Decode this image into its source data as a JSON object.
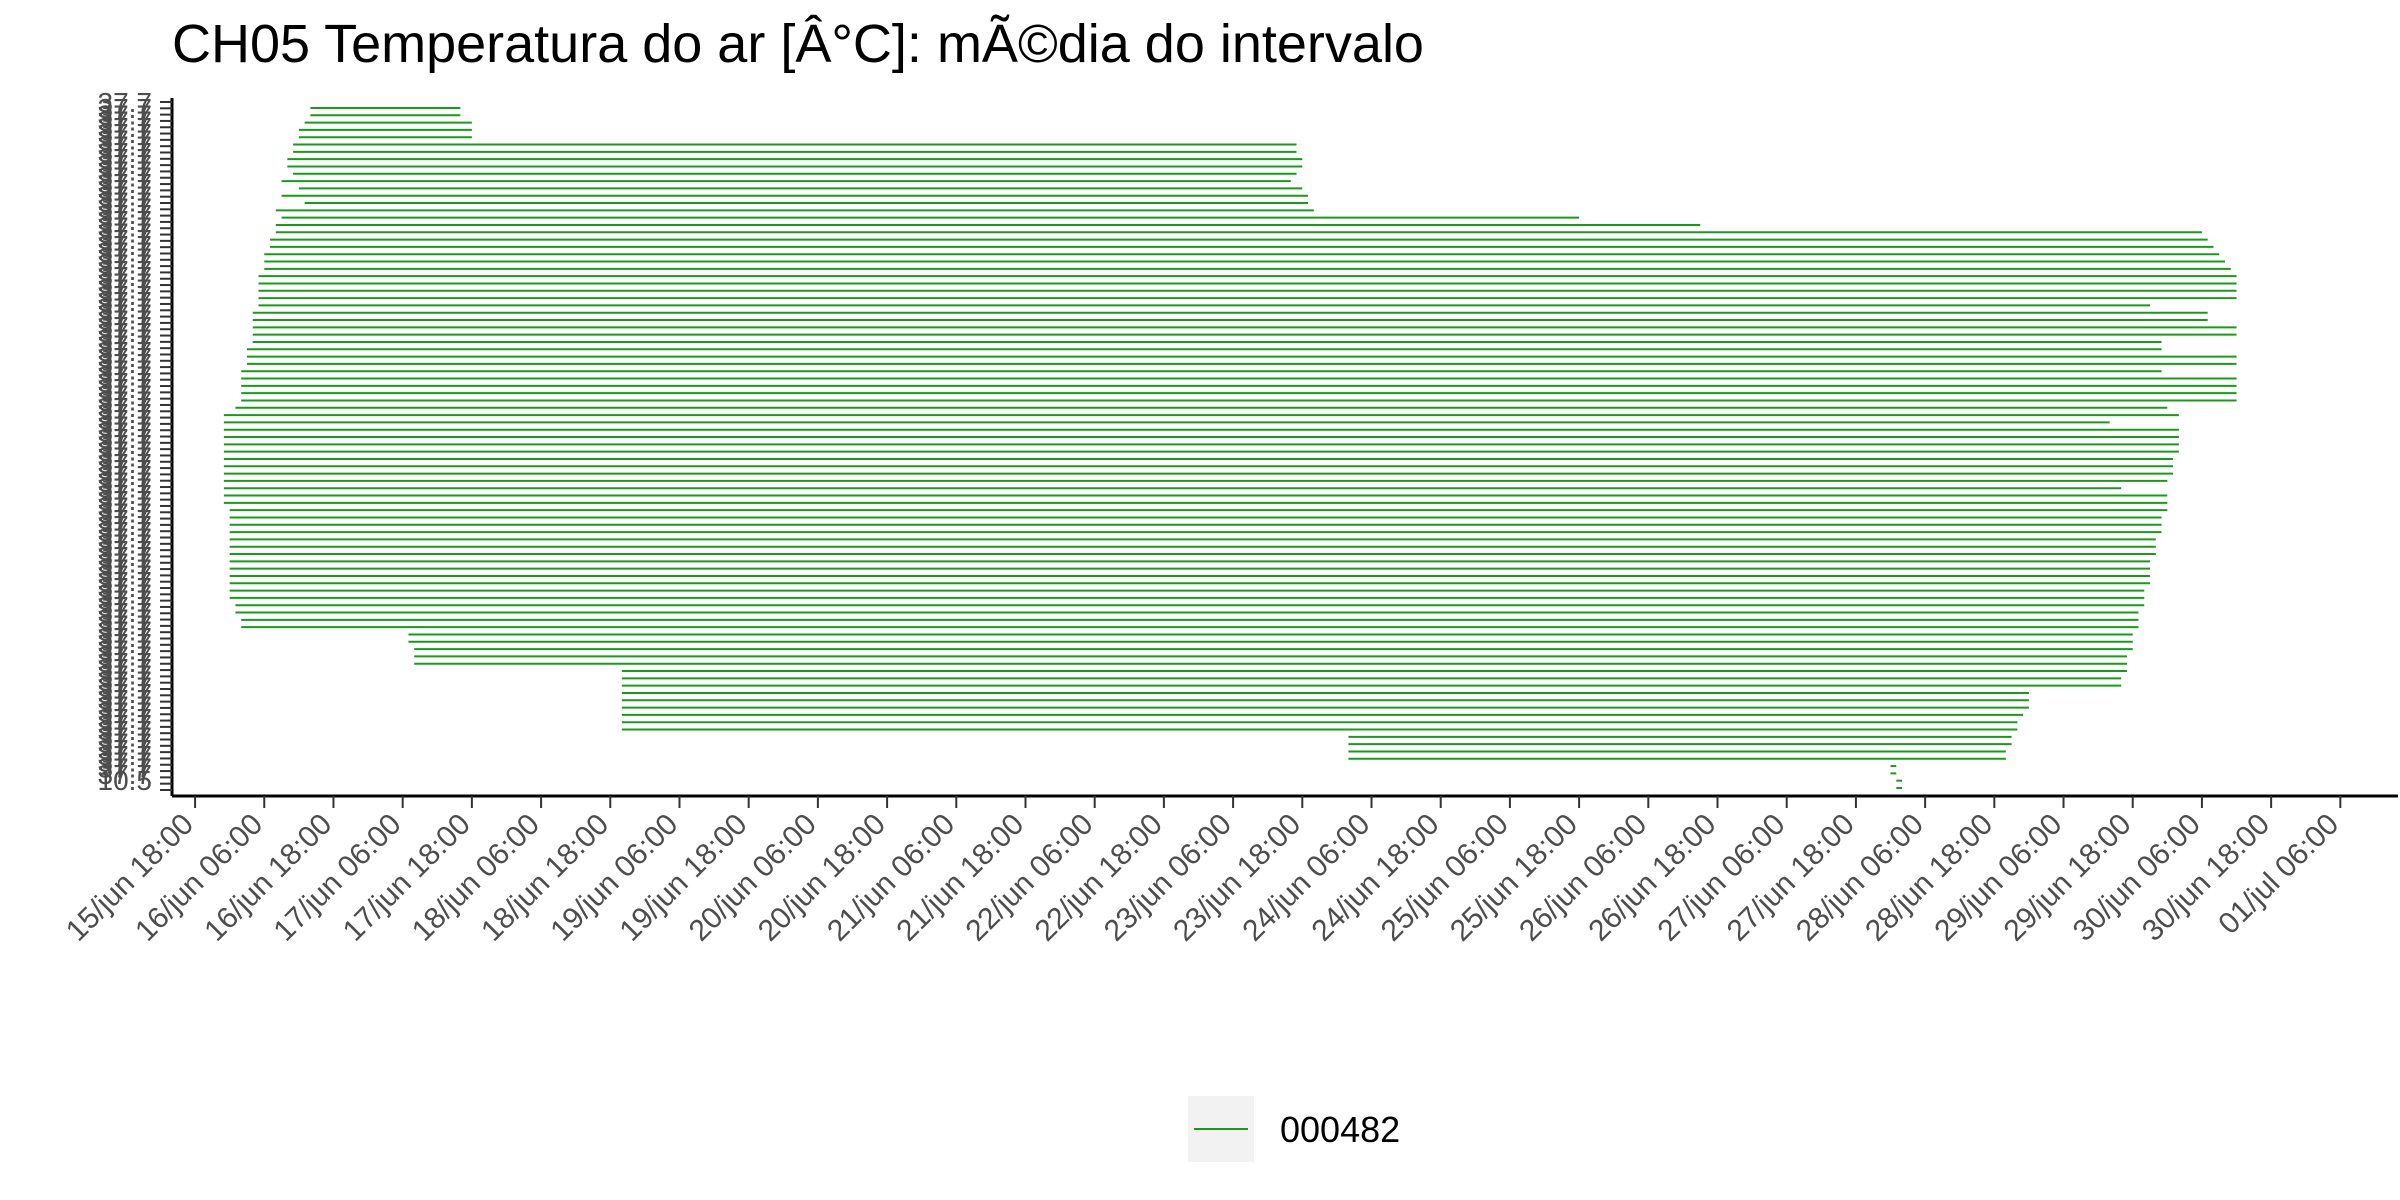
{
  "chart_data": {
    "type": "line",
    "title": "CH05 Temperatura do ar [Â°C]: mÃ©dia do intervalo",
    "xlabel": "",
    "ylabel": "",
    "x_ticks": [
      "15/jun 18:00",
      "16/jun 06:00",
      "16/jun 18:00",
      "17/jun 06:00",
      "17/jun 18:00",
      "18/jun 06:00",
      "18/jun 18:00",
      "19/jun 06:00",
      "19/jun 18:00",
      "20/jun 06:00",
      "20/jun 18:00",
      "21/jun 06:00",
      "21/jun 18:00",
      "22/jun 06:00",
      "22/jun 18:00",
      "23/jun 06:00",
      "23/jun 18:00",
      "24/jun 06:00",
      "24/jun 18:00",
      "25/jun 06:00",
      "25/jun 18:00",
      "26/jun 06:00",
      "26/jun 18:00",
      "27/jun 06:00",
      "27/jun 18:00",
      "28/jun 06:00",
      "28/jun 18:00",
      "29/jun 06:00",
      "29/jun 18:00",
      "30/jun 06:00",
      "30/jun 18:00",
      "01/jul 06:00"
    ],
    "xlim": [
      "15/jun 14:00",
      "01/jul 16:00"
    ],
    "y_ticks_visible": [
      "37.7",
      "10.5"
    ],
    "ylim_category_count": 110,
    "series": [
      {
        "name": "000482",
        "color": "#1a9a1a",
        "segment_rows": [
          [
            "16/jun 14:00",
            "17/jun 16:00"
          ],
          [
            "16/jun 14:00",
            "17/jun 16:00"
          ],
          [
            "16/jun 13:00",
            "17/jun 18:00"
          ],
          [
            "16/jun 12:00",
            "17/jun 18:00"
          ],
          [
            "16/jun 12:00",
            "17/jun 18:00"
          ],
          [
            "16/jun 11:00",
            "23/jun 17:00"
          ],
          [
            "16/jun 11:00",
            "23/jun 17:00"
          ],
          [
            "16/jun 10:00",
            "23/jun 18:00"
          ],
          [
            "16/jun 10:00",
            "23/jun 18:00"
          ],
          [
            "16/jun 11:00",
            "23/jun 17:00"
          ],
          [
            "16/jun 9:00",
            "23/jun 16:00"
          ],
          [
            "16/jun 12:00",
            "23/jun 18:00"
          ],
          [
            "16/jun 9:00",
            "23/jun 19:00"
          ],
          [
            "16/jun 13:00",
            "23/jun 19:00"
          ],
          [
            "16/jun 8:00",
            "23/jun 20:00"
          ],
          [
            "16/jun 9:00",
            "25/jun 18:00"
          ],
          [
            "16/jun 8:00",
            "26/jun 15:00"
          ],
          [
            "16/jun 8:00",
            "30/jun 06:00"
          ],
          [
            "16/jun 7:00",
            "30/jun 07:00"
          ],
          [
            "16/jun 7:00",
            "30/jun 08:00"
          ],
          [
            "16/jun 6:00",
            "30/jun 09:00"
          ],
          [
            "16/jun 6:00",
            "30/jun 10:00"
          ],
          [
            "16/jun 6:00",
            "30/jun 11:00"
          ],
          [
            "16/jun 5:00",
            "30/jun 12:00"
          ],
          [
            "16/jun 5:00",
            "30/jun 12:00"
          ],
          [
            "16/jun 5:00",
            "30/jun 12:00"
          ],
          [
            "16/jun 5:00",
            "30/jun 12:00"
          ],
          [
            "16/jun 5:00",
            "29/jun 21:00"
          ],
          [
            "16/jun 4:00",
            "30/jun 07:00"
          ],
          [
            "16/jun 4:00",
            "30/jun 07:00"
          ],
          [
            "16/jun 4:00",
            "30/jun 12:00"
          ],
          [
            "16/jun 4:00",
            "30/jun 12:00"
          ],
          [
            "16/jun 4:00",
            "29/jun 23:00"
          ],
          [
            "16/jun 3:00",
            "29/jun 23:00"
          ],
          [
            "16/jun 3:00",
            "30/jun 12:00"
          ],
          [
            "16/jun 3:00",
            "30/jun 12:00"
          ],
          [
            "16/jun 2:00",
            "29/jun 23:00"
          ],
          [
            "16/jun 2:00",
            "30/jun 12:00"
          ],
          [
            "16/jun 2:00",
            "30/jun 12:00"
          ],
          [
            "16/jun 2:00",
            "30/jun 12:00"
          ],
          [
            "16/jun 2:00",
            "30/jun 12:00"
          ],
          [
            "16/jun 1:00",
            "30/jun 00:00"
          ],
          [
            "15/jun 23:00",
            "30/jun 02:00"
          ],
          [
            "15/jun 23:00",
            "29/jun 14:00"
          ],
          [
            "15/jun 23:00",
            "30/jun 02:00"
          ],
          [
            "15/jun 23:00",
            "30/jun 02:00"
          ],
          [
            "15/jun 23:00",
            "30/jun 02:00"
          ],
          [
            "15/jun 23:00",
            "30/jun 02:00"
          ],
          [
            "15/jun 23:00",
            "30/jun 01:00"
          ],
          [
            "15/jun 23:00",
            "30/jun 01:00"
          ],
          [
            "15/jun 23:00",
            "30/jun 01:00"
          ],
          [
            "15/jun 23:00",
            "30/jun 00:00"
          ],
          [
            "15/jun 23:00",
            "29/jun 16:00"
          ],
          [
            "15/jun 23:00",
            "30/jun 00:00"
          ],
          [
            "15/jun 23:00",
            "30/jun 00:00"
          ],
          [
            "16/jun 00:00",
            "30/jun 00:00"
          ],
          [
            "16/jun 00:00",
            "29/jun 23:00"
          ],
          [
            "16/jun 00:00",
            "29/jun 23:00"
          ],
          [
            "16/jun 00:00",
            "29/jun 23:00"
          ],
          [
            "16/jun 00:00",
            "29/jun 22:00"
          ],
          [
            "16/jun 00:00",
            "29/jun 22:00"
          ],
          [
            "16/jun 00:00",
            "29/jun 22:00"
          ],
          [
            "16/jun 00:00",
            "29/jun 21:00"
          ],
          [
            "16/jun 00:00",
            "29/jun 21:00"
          ],
          [
            "16/jun 00:00",
            "29/jun 21:00"
          ],
          [
            "16/jun 00:00",
            "29/jun 21:00"
          ],
          [
            "16/jun 00:00",
            "29/jun 20:00"
          ],
          [
            "16/jun 00:00",
            "29/jun 20:00"
          ],
          [
            "16/jun 01:00",
            "29/jun 20:00"
          ],
          [
            "16/jun 01:00",
            "29/jun 19:00"
          ],
          [
            "16/jun 02:00",
            "29/jun 19:00"
          ],
          [
            "16/jun 02:00",
            "29/jun 19:00"
          ],
          [
            "17/jun 07:00",
            "29/jun 18:00"
          ],
          [
            "17/jun 07:00",
            "29/jun 18:00"
          ],
          [
            "17/jun 08:00",
            "29/jun 18:00"
          ],
          [
            "17/jun 08:00",
            "29/jun 17:00"
          ],
          [
            "17/jun 08:00",
            "29/jun 17:00"
          ],
          [
            "18/jun 20:00",
            "29/jun 17:00"
          ],
          [
            "18/jun 20:00",
            "29/jun 16:00"
          ],
          [
            "18/jun 20:00",
            "29/jun 16:00"
          ],
          [
            "18/jun 20:00",
            "29/jun 00:00"
          ],
          [
            "18/jun 20:00",
            "29/jun 00:00"
          ],
          [
            "18/jun 20:00",
            "29/jun 00:00"
          ],
          [
            "18/jun 20:00",
            "28/jun 23:00"
          ],
          [
            "18/jun 20:00",
            "28/jun 22:00"
          ],
          [
            "18/jun 20:00",
            "28/jun 22:00"
          ],
          [
            "24/jun 02:00",
            "28/jun 21:00"
          ],
          [
            "24/jun 02:00",
            "28/jun 21:00"
          ],
          [
            "24/jun 02:00",
            "28/jun 20:00"
          ],
          [
            "24/jun 02:00",
            "28/jun 20:00"
          ],
          [
            "28/jun 00:00",
            "28/jun 01:00"
          ],
          [
            "28/jun 00:00",
            "28/jun 01:00"
          ],
          [
            "28/jun 01:00",
            "28/jun 02:00"
          ],
          [
            "28/jun 01:00",
            "28/jun 02:00"
          ]
        ]
      }
    ],
    "grid": false,
    "legend_position": "bottom"
  },
  "legend": {
    "items": [
      {
        "label": "000482",
        "color": "#1a9a1a"
      }
    ]
  }
}
